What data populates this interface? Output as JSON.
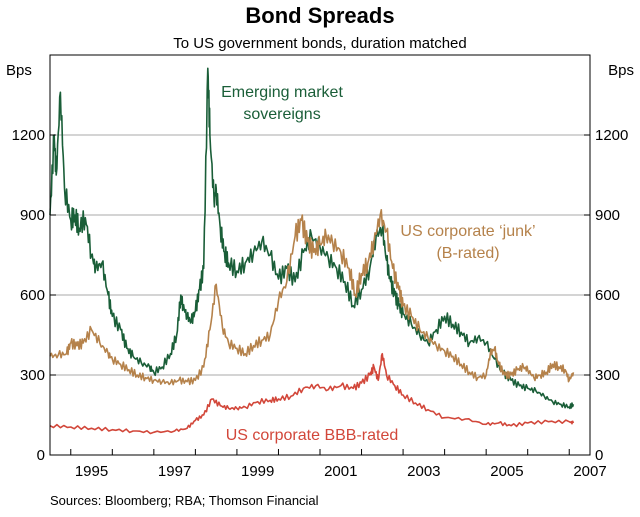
{
  "chart_data": {
    "type": "line",
    "title": "Bond Spreads",
    "subtitle": "To US government bonds, duration matched",
    "unit_left": "Bps",
    "unit_right": "Bps",
    "xlim": [
      1994.5,
      2007.5
    ],
    "ylim": [
      0,
      1500
    ],
    "yticks": [
      0,
      300,
      600,
      900,
      1200
    ],
    "ytick_labels": [
      "0",
      "300",
      "600",
      "900",
      "1200"
    ],
    "xticks": [
      1995,
      1997,
      1999,
      2001,
      2003,
      2005,
      2007
    ],
    "xtick_labels": [
      "1995",
      "1997",
      "1999",
      "2001",
      "2003",
      "2005",
      "2007"
    ],
    "grid": true,
    "source": "Sources: Bloomberg; RBA; Thomson Financial",
    "colors": {
      "emerging": "#1a5e38",
      "junk": "#b5824b",
      "bbb": "#d2473a",
      "grid": "#a8a8a8",
      "axis": "#000000"
    },
    "annotations": {
      "emerging_line1": "Emerging market",
      "emerging_line2": "sovereigns",
      "junk_line1": "US corporate ‘junk’",
      "junk_line2": "(B-rated)",
      "bbb": "US corporate BBB-rated"
    },
    "series": [
      {
        "name": "Emerging market sovereigns",
        "color_key": "emerging",
        "x": [
          1994.5,
          1994.6,
          1994.65,
          1994.75,
          1994.85,
          1995.0,
          1995.1,
          1995.2,
          1995.35,
          1995.5,
          1995.6,
          1995.75,
          1995.9,
          1996.0,
          1996.2,
          1996.35,
          1996.5,
          1996.7,
          1996.9,
          1997.0,
          1997.2,
          1997.4,
          1997.55,
          1997.65,
          1997.7,
          1997.8,
          1997.9,
          1998.0,
          1998.1,
          1998.2,
          1998.3,
          1998.35,
          1998.45,
          1998.5,
          1998.6,
          1998.7,
          1998.8,
          1999.0,
          1999.2,
          1999.4,
          1999.6,
          1999.8,
          2000.0,
          2000.2,
          2000.4,
          2000.6,
          2000.8,
          2001.0,
          2001.2,
          2001.4,
          2001.6,
          2001.8,
          2002.0,
          2002.2,
          2002.35,
          2002.5,
          2002.6,
          2002.7,
          2002.8,
          2002.9,
          2003.0,
          2003.2,
          2003.4,
          2003.6,
          2003.8,
          2004.0,
          2004.2,
          2004.4,
          2004.6,
          2004.8,
          2005.0,
          2005.2,
          2005.4,
          2005.6,
          2005.8,
          2006.0,
          2006.2,
          2006.4,
          2006.6,
          2006.8,
          2007.0,
          2007.1
        ],
        "values": [
          900,
          1200,
          1050,
          1360,
          1000,
          880,
          900,
          850,
          890,
          750,
          700,
          720,
          600,
          520,
          470,
          400,
          370,
          345,
          330,
          310,
          330,
          380,
          450,
          600,
          560,
          520,
          500,
          540,
          620,
          700,
          1450,
          1200,
          950,
          1000,
          850,
          760,
          720,
          690,
          720,
          760,
          800,
          750,
          660,
          700,
          650,
          760,
          820,
          780,
          740,
          700,
          650,
          560,
          620,
          700,
          820,
          850,
          730,
          650,
          600,
          560,
          530,
          490,
          450,
          420,
          470,
          520,
          490,
          460,
          420,
          440,
          420,
          360,
          310,
          280,
          260,
          250,
          240,
          220,
          200,
          190,
          180,
          190
        ]
      },
      {
        "name": "US corporate junk (B-rated)",
        "color_key": "junk",
        "x": [
          1994.5,
          1994.7,
          1994.9,
          1995.0,
          1995.15,
          1995.3,
          1995.5,
          1995.7,
          1995.9,
          1996.0,
          1996.2,
          1996.4,
          1996.6,
          1996.8,
          1997.0,
          1997.2,
          1997.4,
          1997.6,
          1997.8,
          1998.0,
          1998.2,
          1998.35,
          1998.5,
          1998.65,
          1998.8,
          1999.0,
          1999.2,
          1999.4,
          1999.6,
          1999.8,
          2000.0,
          2000.2,
          2000.4,
          2000.55,
          2000.7,
          2000.85,
          2001.0,
          2001.15,
          2001.3,
          2001.5,
          2001.7,
          2001.85,
          2002.0,
          2002.15,
          2002.3,
          2002.45,
          2002.6,
          2002.75,
          2002.9,
          2003.0,
          2003.2,
          2003.4,
          2003.6,
          2003.8,
          2004.0,
          2004.2,
          2004.4,
          2004.6,
          2004.8,
          2005.0,
          2005.1,
          2005.2,
          2005.3,
          2005.45,
          2005.6,
          2005.75,
          2005.9,
          2006.0,
          2006.15,
          2006.3,
          2006.45,
          2006.6,
          2006.75,
          2006.9,
          2007.0,
          2007.1
        ],
        "values": [
          370,
          375,
          380,
          420,
          410,
          420,
          470,
          420,
          380,
          360,
          340,
          320,
          300,
          290,
          280,
          275,
          270,
          280,
          275,
          280,
          330,
          470,
          640,
          480,
          420,
          400,
          380,
          410,
          430,
          450,
          580,
          650,
          820,
          880,
          800,
          760,
          790,
          820,
          800,
          760,
          700,
          600,
          680,
          720,
          800,
          900,
          840,
          700,
          620,
          560,
          520,
          470,
          440,
          410,
          390,
          370,
          340,
          310,
          290,
          300,
          380,
          400,
          340,
          300,
          300,
          320,
          330,
          320,
          290,
          300,
          310,
          340,
          330,
          320,
          280,
          310
        ]
      },
      {
        "name": "US corporate BBB-rated",
        "color_key": "bbb",
        "x": [
          1994.5,
          1995.0,
          1995.5,
          1996.0,
          1996.5,
          1997.0,
          1997.5,
          1997.8,
          1998.0,
          1998.2,
          1998.4,
          1998.6,
          1998.8,
          1999.0,
          1999.2,
          1999.5,
          1999.8,
          2000.0,
          2000.3,
          2000.6,
          2000.9,
          2001.2,
          2001.5,
          2001.8,
          2002.0,
          2002.2,
          2002.3,
          2002.4,
          2002.5,
          2002.6,
          2002.8,
          2003.0,
          2003.3,
          2003.6,
          2004.0,
          2004.5,
          2005.0,
          2005.3,
          2005.6,
          2006.0,
          2006.5,
          2007.0,
          2007.1
        ],
        "values": [
          110,
          105,
          100,
          95,
          90,
          85,
          90,
          100,
          130,
          150,
          210,
          185,
          175,
          175,
          180,
          200,
          205,
          210,
          220,
          250,
          260,
          245,
          260,
          250,
          270,
          300,
          330,
          280,
          380,
          300,
          260,
          225,
          195,
          170,
          140,
          135,
          115,
          120,
          110,
          120,
          125,
          125,
          120
        ]
      }
    ]
  }
}
